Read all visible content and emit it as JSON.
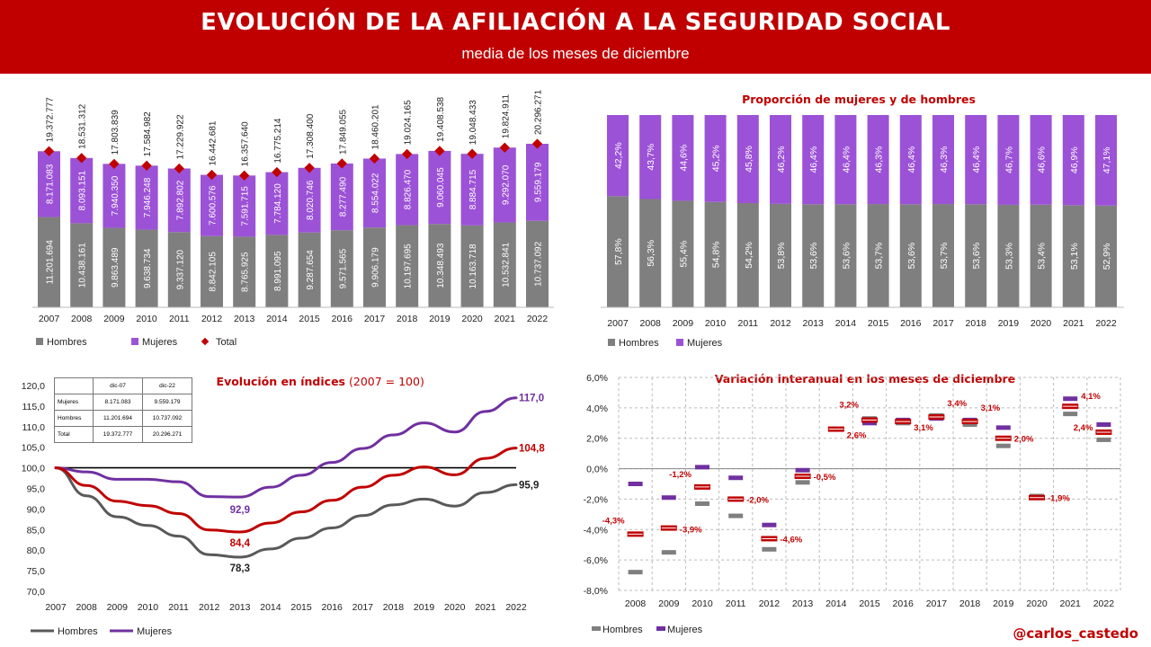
{
  "header": {
    "title": "EVOLUCIÓN DE LA AFILIACIÓN A LA SEGURIDAD SOCIAL",
    "subtitle": "media de los meses de diciembre"
  },
  "credit": "@carlos_castedo",
  "colors": {
    "hombres": "#7f7f7f",
    "mujeres": "#9c52d6",
    "total": "#c00000",
    "brand": "#c00000",
    "mujeres_line": "#7030a0"
  },
  "chart_data": [
    {
      "id": "afiliacion",
      "type": "bar",
      "stacked": true,
      "categories": [
        "2007",
        "2008",
        "2009",
        "2010",
        "2011",
        "2012",
        "2013",
        "2014",
        "2015",
        "2016",
        "2017",
        "2018",
        "2019",
        "2020",
        "2021",
        "2022"
      ],
      "series": [
        {
          "name": "Hombres",
          "values": [
            11201694,
            10438161,
            9863489,
            9638734,
            9337120,
            8842105,
            8765925,
            8991095,
            9287654,
            9571565,
            9906179,
            10197695,
            10348493,
            10163718,
            10532841,
            10737092
          ],
          "labels": [
            "11.201.694",
            "10.438.161",
            "9.863.489",
            "9.638.734",
            "9.337.120",
            "8.842.105",
            "8.765.925",
            "8.991.095",
            "9.287.654",
            "9.571.565",
            "9.906.179",
            "10.197.695",
            "10.348.493",
            "10.163.718",
            "10.532.841",
            "10.737.092"
          ]
        },
        {
          "name": "Mujeres",
          "values": [
            8171083,
            8093151,
            7940350,
            7946248,
            7892802,
            7600576,
            7591715,
            7784120,
            8020746,
            8277490,
            8554022,
            8826470,
            9060045,
            8884715,
            9292070,
            9559179
          ],
          "labels": [
            "8.171.083",
            "8.093.151",
            "7.940.350",
            "7.946.248",
            "7.892.802",
            "7.600.576",
            "7.591.715",
            "7.784.120",
            "8.020.746",
            "8.277.490",
            "8.554.022",
            "8.826.470",
            "9.060.045",
            "8.884.715",
            "9.292.070",
            "9.559.179"
          ]
        },
        {
          "name": "Total",
          "values": [
            19372777,
            18531312,
            17803839,
            17584982,
            17229922,
            16442681,
            16357640,
            16775214,
            17308400,
            17849055,
            18460201,
            19024165,
            19408538,
            19048433,
            19824911,
            20296271
          ],
          "labels": [
            "19.372.777",
            "18.531.312",
            "17.803.839",
            "17.584.982",
            "17.229.922",
            "16.442.681",
            "16.357.640",
            "16.775.214",
            "17.308.400",
            "17.849.055",
            "18.460.201",
            "19.024.165",
            "19.408.538",
            "19.048.433",
            "19.824.911",
            "20.296.271"
          ]
        }
      ],
      "legend": [
        "Hombres",
        "Mujeres",
        "Total"
      ]
    },
    {
      "id": "proporcion",
      "type": "bar",
      "stacked": true,
      "title": "Proporción de mujeres y de hombres",
      "categories": [
        "2007",
        "2008",
        "2009",
        "2010",
        "2011",
        "2012",
        "2013",
        "2014",
        "2015",
        "2016",
        "2017",
        "2018",
        "2019",
        "2020",
        "2021",
        "2022"
      ],
      "series": [
        {
          "name": "Hombres",
          "values": [
            57.8,
            56.3,
            55.4,
            54.8,
            54.2,
            53.8,
            53.6,
            53.6,
            53.7,
            53.6,
            53.7,
            53.6,
            53.3,
            53.4,
            53.1,
            52.9
          ],
          "labels": [
            "57,8%",
            "56,3%",
            "55,4%",
            "54,8%",
            "54,2%",
            "53,8%",
            "53,6%",
            "53,6%",
            "53,7%",
            "53,6%",
            "53,7%",
            "53,6%",
            "53,3%",
            "53,4%",
            "53,1%",
            "52,9%"
          ]
        },
        {
          "name": "Mujeres",
          "values": [
            42.2,
            43.7,
            44.6,
            45.2,
            45.8,
            46.2,
            46.4,
            46.4,
            46.3,
            46.4,
            46.3,
            46.4,
            46.7,
            46.6,
            46.9,
            47.1
          ],
          "labels": [
            "42,2%",
            "43,7%",
            "44,6%",
            "45,2%",
            "45,8%",
            "46,2%",
            "46,4%",
            "46,4%",
            "46,3%",
            "46,4%",
            "46,3%",
            "46,4%",
            "46,7%",
            "46,6%",
            "46,9%",
            "47,1%"
          ]
        }
      ],
      "legend": [
        "Hombres",
        "Mujeres"
      ]
    },
    {
      "id": "indices",
      "type": "line",
      "title": "Evolución en índices",
      "title_note": "(2007 = 100)",
      "x": [
        "2007",
        "2008",
        "2009",
        "2010",
        "2011",
        "2012",
        "2013",
        "2014",
        "2015",
        "2016",
        "2017",
        "2018",
        "2019",
        "2020",
        "2021",
        "2022"
      ],
      "ylim": [
        70,
        120
      ],
      "yticks": [
        "70,0",
        "75,0",
        "80,0",
        "85,0",
        "90,0",
        "95,0",
        "100,0",
        "105,0",
        "110,0",
        "115,0",
        "120,0"
      ],
      "series": [
        {
          "name": "Hombres",
          "values": [
            100,
            93.2,
            88.1,
            86.0,
            83.4,
            78.9,
            78.3,
            80.3,
            82.9,
            85.4,
            88.4,
            91.0,
            92.4,
            90.7,
            94.0,
            95.9
          ]
        },
        {
          "name": "Mujeres",
          "values": [
            100,
            99.0,
            97.2,
            97.2,
            96.6,
            93.0,
            92.9,
            95.3,
            98.2,
            101.3,
            104.7,
            108.0,
            110.9,
            108.7,
            113.7,
            117.0
          ]
        },
        {
          "name": "Total",
          "values": [
            100,
            95.7,
            91.9,
            90.8,
            88.9,
            84.9,
            84.4,
            86.6,
            89.3,
            92.1,
            95.3,
            98.2,
            100.2,
            98.3,
            102.3,
            104.8
          ]
        }
      ],
      "annotations": [
        {
          "series": "Mujeres",
          "x": "2013",
          "label": "92,9"
        },
        {
          "series": "Total",
          "x": "2013",
          "label": "84,4"
        },
        {
          "series": "Hombres",
          "x": "2013",
          "label": "78,3"
        },
        {
          "series": "Mujeres",
          "x": "2022",
          "label": "117,0"
        },
        {
          "series": "Total",
          "x": "2022",
          "label": "104,8"
        },
        {
          "series": "Hombres",
          "x": "2022",
          "label": "95,9"
        }
      ],
      "legend": [
        "Hombres",
        "Mujeres"
      ],
      "table": {
        "headers": [
          "",
          "dic-07",
          "dic-22"
        ],
        "rows": [
          [
            "Mujeres",
            "8.171.083",
            "9.559.179"
          ],
          [
            "Hombres",
            "11.201.694",
            "10.737.092"
          ],
          [
            "Total",
            "19.372.777",
            "20.296.271"
          ]
        ]
      }
    },
    {
      "id": "variacion",
      "type": "scatter",
      "title": "Variación interanual en los meses de diciembre",
      "x": [
        "2008",
        "2009",
        "2010",
        "2011",
        "2012",
        "2013",
        "2014",
        "2015",
        "2016",
        "2017",
        "2018",
        "2019",
        "2020",
        "2021",
        "2022"
      ],
      "ylim": [
        -8,
        6
      ],
      "yticks": [
        "-8,0%",
        "-6,0%",
        "-4,0%",
        "-2,0%",
        "0,0%",
        "2,0%",
        "4,0%",
        "6,0%"
      ],
      "series": [
        {
          "name": "Hombres",
          "values": [
            -6.8,
            -5.5,
            -2.3,
            -3.1,
            -5.3,
            -0.9,
            2.6,
            3.3,
            3.0,
            3.5,
            2.9,
            1.5,
            -1.8,
            3.6,
            1.9
          ]
        },
        {
          "name": "Mujeres",
          "values": [
            -1.0,
            -1.9,
            0.1,
            -0.6,
            -3.7,
            -0.1,
            2.6,
            3.0,
            3.2,
            3.3,
            3.2,
            2.7,
            -1.9,
            4.6,
            2.9
          ]
        },
        {
          "name": "Total",
          "values": [
            -4.3,
            -3.9,
            -1.2,
            -2.0,
            -4.6,
            -0.5,
            2.6,
            3.2,
            3.1,
            3.4,
            3.1,
            2.0,
            -1.9,
            4.1,
            2.4
          ],
          "labels": [
            "-4,3%",
            "-3,9%",
            "-1,2%",
            "-2,0%",
            "-4,6%",
            "-0,5%",
            "2,6%",
            "3,2%",
            "3,1%",
            "3,4%",
            "3,1%",
            "2,0%",
            "-1,9%",
            "4,1%",
            "2,4%"
          ]
        }
      ],
      "legend": [
        "Hombres",
        "Mujeres"
      ]
    }
  ]
}
